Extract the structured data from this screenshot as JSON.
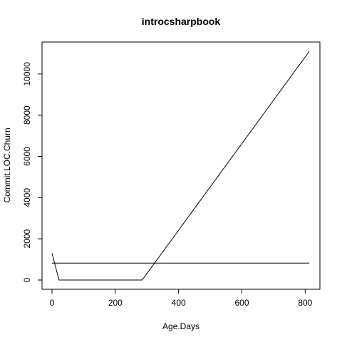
{
  "chart_data": {
    "type": "line",
    "title": "introcsharpbook",
    "xlabel": "Age.Days",
    "ylabel": "Commit.LOC.Churn",
    "xlim": [
      0,
      815
    ],
    "ylim": [
      0,
      11100
    ],
    "x_ticks": [
      0,
      200,
      400,
      600,
      800
    ],
    "y_ticks": [
      0,
      2000,
      4000,
      6000,
      8000,
      10000
    ],
    "grid": false,
    "legend": "none",
    "series": [
      {
        "values": [
          [
            0,
            1300
          ],
          [
            22,
            0
          ],
          [
            285,
            0
          ],
          [
            813,
            11100
          ]
        ]
      },
      {
        "values": [
          [
            0,
            820
          ],
          [
            813,
            820
          ]
        ]
      }
    ]
  }
}
